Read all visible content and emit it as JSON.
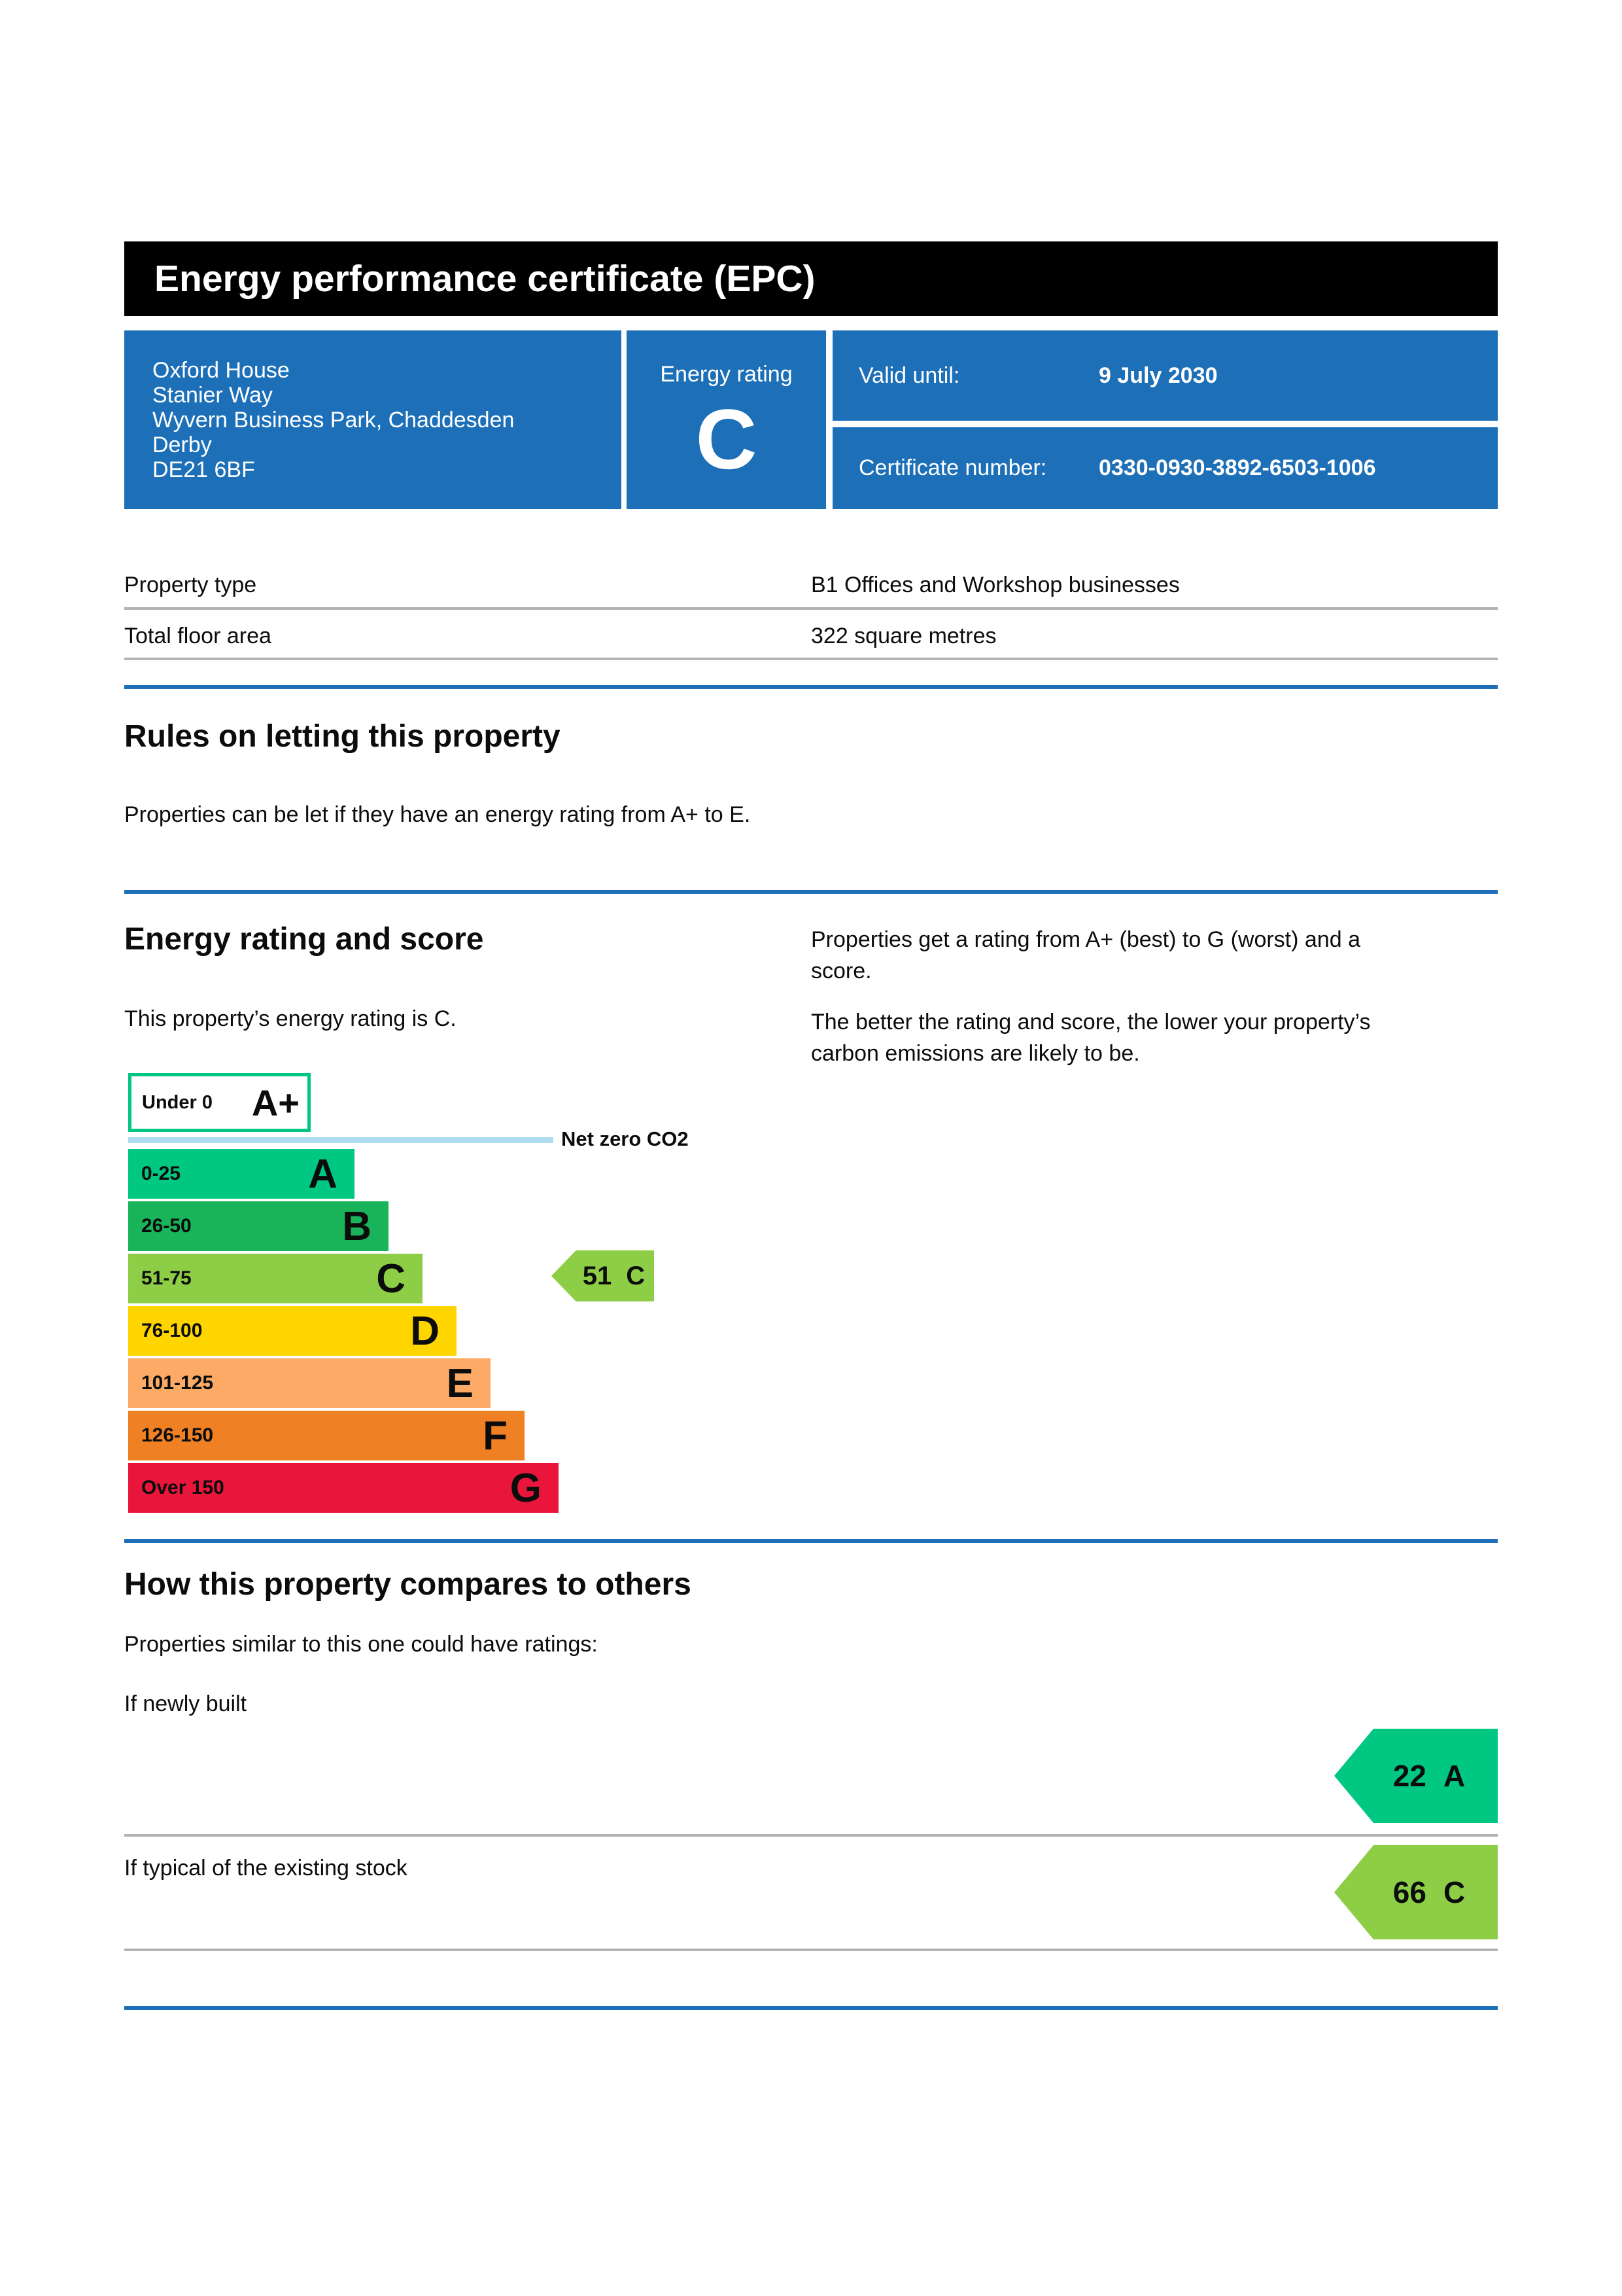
{
  "header": {
    "title": "Energy performance certificate (EPC)"
  },
  "summary": {
    "address_lines": [
      "Oxford House",
      "Stanier Way",
      "Wyvern Business Park, Chaddesden",
      "Derby",
      "DE21 6BF"
    ],
    "energy_rating_label": "Energy rating",
    "energy_rating": "C",
    "valid_until_label": "Valid until:",
    "valid_until_value": "9 July 2030",
    "certificate_number_label": "Certificate number:",
    "certificate_number_value": "0330-0930-3892-6503-1006",
    "panel_color": "#1d70b8"
  },
  "property_details": {
    "rows": [
      {
        "label": "Property type",
        "value": "B1 Offices and Workshop businesses"
      },
      {
        "label": "Total floor area",
        "value": "322 square metres"
      }
    ]
  },
  "rules_section": {
    "heading": "Rules on letting this property",
    "body": "Properties can be let if they have an energy rating from A+ to E."
  },
  "rating_section": {
    "heading": "Energy rating and score",
    "intro": "This property’s energy rating is C.",
    "right_para1": "Properties get a rating from A+ (best) to G (worst) and a score.",
    "right_para2": "The better the rating and score, the lower your property’s carbon emissions are likely to be.",
    "net_zero_label": "Net zero CO2",
    "net_zero_line_color": "#abdcf0",
    "current": {
      "score": "51",
      "band": "C",
      "color": "#8dce46"
    },
    "chart_data": {
      "type": "bar",
      "title": "Energy rating and score",
      "bands": [
        {
          "band": "A+",
          "range": "Under 0",
          "color": "#00c781",
          "outline_only": true
        },
        {
          "band": "A",
          "range": "0-25",
          "color": "#00c781"
        },
        {
          "band": "B",
          "range": "26-50",
          "color": "#19b459"
        },
        {
          "band": "C",
          "range": "51-75",
          "color": "#8dce46"
        },
        {
          "band": "D",
          "range": "76-100",
          "color": "#ffd500"
        },
        {
          "band": "E",
          "range": "101-125",
          "color": "#fcaa65"
        },
        {
          "band": "F",
          "range": "126-150",
          "color": "#ef8023"
        },
        {
          "band": "G",
          "range": "Over 150",
          "color": "#e9153b"
        }
      ],
      "current_score": 51,
      "current_band": "C"
    }
  },
  "compare_section": {
    "heading": "How this property compares to others",
    "intro": "Properties similar to this one could have ratings:",
    "rows": [
      {
        "label": "If newly built",
        "score": "22",
        "band": "A",
        "color": "#00c781"
      },
      {
        "label": "If typical of the existing stock",
        "score": "66",
        "band": "C",
        "color": "#8dce46"
      }
    ]
  },
  "colors": {
    "accent_blue": "#1d70b8",
    "divider_gray": "#b1b4b6",
    "header_black": "#000000"
  }
}
